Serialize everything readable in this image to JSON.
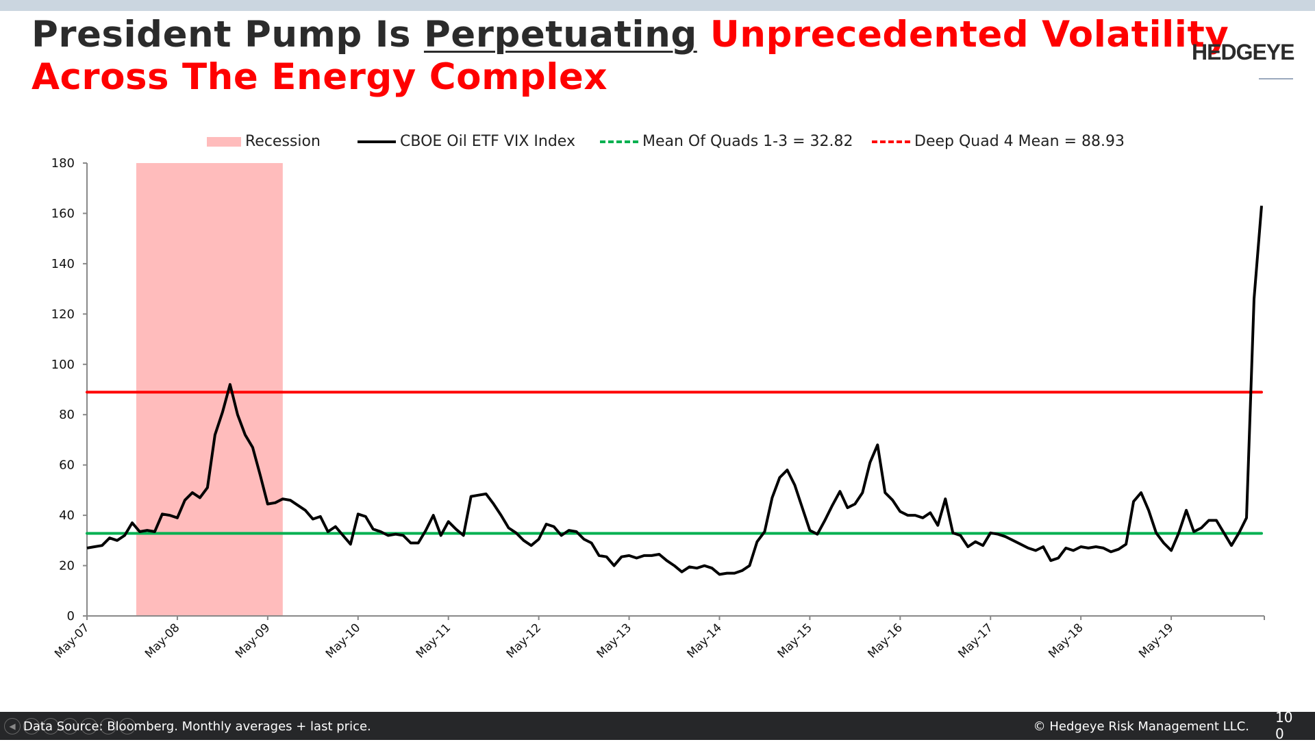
{
  "title": {
    "part1": "President Pump Is ",
    "underlined": "Perpetuating",
    "red1": " Unprecedented Volatility",
    "line2": "Across The Energy Complex"
  },
  "logo": "HEDGEYE",
  "colors": {
    "series": "#000000",
    "recession": "#ffbcbc",
    "mean_quads": "#00b050",
    "deep_quad4": "#ff0000",
    "title_red": "#ff0000"
  },
  "chart_data": {
    "type": "line",
    "title": "",
    "xlabel": "",
    "ylabel": "",
    "ylim": [
      0,
      180
    ],
    "yticks": [
      0,
      20,
      40,
      60,
      80,
      100,
      120,
      140,
      160,
      180
    ],
    "xtick_labels": [
      "May-07",
      "May-08",
      "May-09",
      "May-10",
      "May-11",
      "May-12",
      "May-13",
      "May-14",
      "May-15",
      "May-16",
      "May-17",
      "May-18",
      "May-19"
    ],
    "x_start": "May-07",
    "x_step": "monthly",
    "legend": {
      "position": "top",
      "entries": [
        "Recession",
        "CBOE Oil ETF VIX Index",
        "Mean Of Quads 1-3 = 32.82",
        "Deep Quad 4 Mean = 88.93"
      ]
    },
    "recession": {
      "start_index": 7,
      "end_index": 26
    },
    "hlines": [
      {
        "name": "Mean Of Quads 1-3",
        "value": 32.82
      },
      {
        "name": "Deep Quad 4 Mean",
        "value": 88.93
      }
    ],
    "series": [
      {
        "name": "CBOE Oil ETF VIX Index",
        "values": [
          27,
          27.5,
          28,
          31,
          30,
          32,
          37,
          33.5,
          34,
          33.5,
          40.5,
          40,
          39,
          46,
          49,
          47,
          51,
          72,
          81,
          92,
          80,
          72,
          67,
          56,
          44.5,
          45,
          46.5,
          46,
          44,
          42,
          38.5,
          39.5,
          33.5,
          35.5,
          32,
          28.5,
          40.5,
          39.5,
          34.5,
          33.5,
          32,
          32.5,
          32,
          29,
          29,
          34,
          40,
          32,
          37.5,
          34.5,
          32,
          47.5,
          48,
          48.5,
          44.5,
          40,
          35,
          33,
          30,
          28,
          30.5,
          36.5,
          35.5,
          32,
          34,
          33.5,
          30.5,
          29,
          24,
          23.5,
          20,
          23.5,
          24,
          23,
          24,
          24,
          24.5,
          22,
          20,
          17.5,
          19.5,
          19,
          20,
          19,
          16.5,
          17,
          17,
          18,
          20,
          29.5,
          33.5,
          47,
          55,
          58,
          52,
          43,
          34,
          32.5,
          38,
          44,
          49.5,
          43,
          44.5,
          49,
          61,
          68,
          49,
          46,
          41.5,
          40,
          40,
          39,
          41,
          36,
          46.5,
          33,
          32,
          27.5,
          29.5,
          28,
          33,
          32.5,
          31.5,
          30,
          28.5,
          27,
          26,
          27.5,
          22,
          23,
          27,
          26,
          27.5,
          27,
          27.5,
          27,
          25.5,
          26.5,
          28.5,
          45.5,
          49,
          42,
          33,
          29,
          26,
          33,
          42,
          33.5,
          35,
          38,
          38,
          33,
          28,
          33,
          39,
          126,
          163
        ]
      }
    ]
  },
  "footer": {
    "source": "Data Source: Bloomberg. Monthly averages + last price.",
    "copyright": "© Hedgeye Risk Management LLC.",
    "page": "100"
  }
}
